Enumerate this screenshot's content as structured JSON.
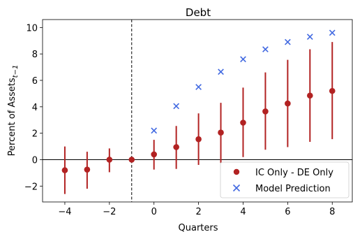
{
  "chart_data": {
    "type": "scatter",
    "title": "Debt",
    "xlabel": "Quarters",
    "ylabel_main": "Percent of Assets",
    "ylabel_sub": "t−1",
    "xlim": [
      -5.0,
      8.9
    ],
    "ylim": [
      -3.2,
      10.6
    ],
    "xticks": [
      -4,
      -2,
      0,
      2,
      4,
      6,
      8
    ],
    "xtick_labels": [
      "−4",
      "−2",
      "0",
      "2",
      "4",
      "6",
      "8"
    ],
    "yticks": [
      -2,
      0,
      2,
      4,
      6,
      8,
      10
    ],
    "ytick_labels": [
      "−2",
      "0",
      "2",
      "4",
      "6",
      "8",
      "10"
    ],
    "event_line_x": -1,
    "zero_line_y": 0,
    "legend_position": "bottom-right",
    "colors": {
      "estimate": "#b22222",
      "prediction": "#4169e1"
    },
    "series": [
      {
        "name": "IC Only - DE Only",
        "marker": "circle",
        "x": [
          -4,
          -3,
          -2,
          -1,
          0,
          1,
          2,
          3,
          4,
          5,
          6,
          7,
          8
        ],
        "y": [
          -0.8,
          -0.75,
          0.0,
          0.0,
          0.4,
          0.95,
          1.55,
          2.05,
          2.8,
          3.65,
          4.25,
          4.85,
          5.2
        ],
        "ci_low": [
          -2.6,
          -2.2,
          -0.95,
          0.0,
          -0.75,
          -0.7,
          -0.4,
          -0.25,
          0.2,
          0.75,
          0.95,
          1.35,
          1.55
        ],
        "ci_high": [
          1.0,
          0.6,
          0.85,
          0.0,
          1.5,
          2.55,
          3.5,
          4.3,
          5.45,
          6.6,
          7.55,
          8.35,
          8.9
        ]
      },
      {
        "name": "Model Prediction",
        "marker": "x",
        "x": [
          0,
          1,
          2,
          3,
          4,
          5,
          6,
          7,
          8
        ],
        "y": [
          2.2,
          4.05,
          5.5,
          6.65,
          7.6,
          8.35,
          8.9,
          9.3,
          9.6
        ]
      }
    ]
  }
}
